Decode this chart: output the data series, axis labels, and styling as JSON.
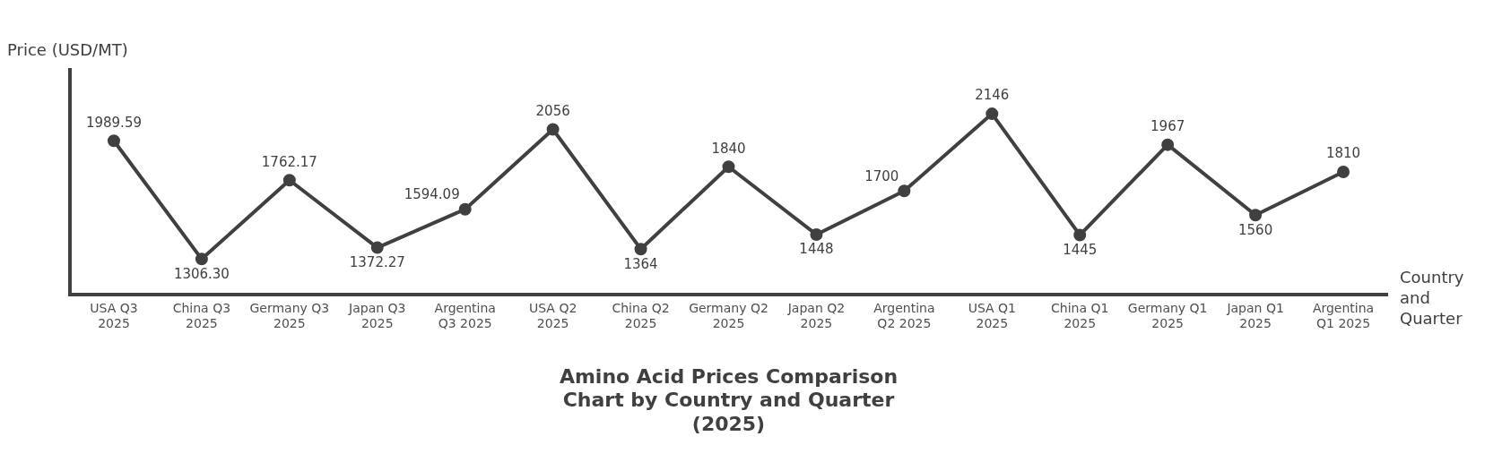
{
  "chart_data": {
    "type": "line",
    "title": "Amino Acid Prices Comparison Chart by Country and Quarter (2025)",
    "xlabel": "Country and Quarter",
    "ylabel": "Price (USD/MT)",
    "categories": [
      "USA Q3 2025",
      "China Q3 2025",
      "Germany Q3 2025",
      "Japan Q3 2025",
      "Argentina Q3 2025",
      "USA Q2 2025",
      "China Q2 2025",
      "Germany Q2 2025",
      "Japan Q2 2025",
      "Argentina Q2 2025",
      "USA Q1 2025",
      "China Q1 2025",
      "Germany Q1 2025",
      "Japan Q1 2025",
      "Argentina Q1 2025"
    ],
    "series": [
      {
        "color": "#404040",
        "values": [
          1989.59,
          1306.3,
          1762.17,
          1372.27,
          1594.09,
          2056,
          1364,
          1840,
          1448,
          1700,
          2146,
          1445,
          1967,
          1560,
          1810
        ],
        "value_labels": [
          "1989.59",
          "1306.30",
          "1762.17",
          "1372.27",
          "1594.09",
          "2056",
          "1364",
          "1840",
          "1448",
          "1700",
          "2146",
          "1445",
          "1967",
          "1560",
          "1810"
        ]
      }
    ],
    "ylim": [
      1100,
      2400
    ],
    "tick_labels": "x",
    "grid": false,
    "legend": false,
    "marker": "circle",
    "line_style": "solid"
  }
}
